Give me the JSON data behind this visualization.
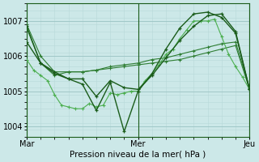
{
  "bg_color": "#cce8e8",
  "grid_color_major": "#a0c8c8",
  "grid_color_minor": "#b8d8d8",
  "line_color_dark": "#1a5c1a",
  "line_color_mid": "#2e7d32",
  "line_color_light": "#4caf50",
  "xlabel": "Pression niveau de la mer( hPa )",
  "xtick_labels": [
    "Mar",
    "Mer",
    "Jeu"
  ],
  "ytick_labels": [
    "1004",
    "1005",
    "1006",
    "1007"
  ],
  "ylim": [
    1003.7,
    1007.5
  ],
  "xlim": [
    0,
    96
  ],
  "xticks": [
    0,
    48,
    96
  ],
  "yticks": [
    1004,
    1005,
    1006,
    1007
  ],
  "s1_x": [
    0,
    6,
    12,
    18,
    24,
    30,
    36,
    42,
    48,
    54,
    60,
    66,
    72,
    78,
    84,
    90,
    96
  ],
  "s1_y": [
    1006.8,
    1005.8,
    1005.45,
    1005.55,
    1005.55,
    1005.6,
    1005.65,
    1005.7,
    1005.75,
    1005.8,
    1005.85,
    1005.9,
    1006.0,
    1006.1,
    1006.2,
    1006.3,
    1005.05
  ],
  "s2_x": [
    0,
    6,
    12,
    18,
    24,
    30,
    36,
    42,
    48,
    54,
    60,
    66,
    72,
    78,
    84,
    90,
    96
  ],
  "s2_y": [
    1006.9,
    1006.0,
    1005.55,
    1005.55,
    1005.55,
    1005.6,
    1005.7,
    1005.75,
    1005.8,
    1005.9,
    1005.95,
    1006.05,
    1006.15,
    1006.25,
    1006.35,
    1006.4,
    1005.08
  ],
  "s3_x": [
    0,
    3,
    6,
    9,
    12,
    15,
    18,
    21,
    24,
    27,
    30,
    33,
    36,
    39,
    42,
    45,
    48,
    51,
    54,
    57,
    60,
    63,
    66,
    69,
    72,
    75,
    78,
    81,
    84,
    87,
    90,
    93,
    96
  ],
  "s3_y": [
    1005.9,
    1005.6,
    1005.45,
    1005.3,
    1004.9,
    1004.6,
    1004.55,
    1004.5,
    1004.5,
    1004.65,
    1004.55,
    1004.6,
    1004.95,
    1004.9,
    1004.95,
    1005.0,
    1005.0,
    1005.3,
    1005.5,
    1005.75,
    1006.05,
    1006.2,
    1006.5,
    1006.75,
    1007.0,
    1007.0,
    1007.0,
    1007.05,
    1006.55,
    1006.05,
    1005.7,
    1005.4,
    1005.05
  ],
  "s4_x": [
    0,
    6,
    12,
    18,
    24,
    30,
    36,
    42,
    48,
    54,
    60,
    66,
    72,
    78,
    84,
    90,
    96
  ],
  "s4_y": [
    1006.85,
    1005.8,
    1005.55,
    1005.35,
    1005.35,
    1004.85,
    1005.3,
    1005.1,
    1005.05,
    1005.45,
    1005.95,
    1006.45,
    1006.85,
    1007.15,
    1007.2,
    1006.7,
    1005.05
  ],
  "s5_x": [
    0,
    6,
    12,
    18,
    24,
    30,
    36,
    42,
    48,
    54,
    60,
    66,
    72,
    78,
    84,
    90,
    96
  ],
  "s5_y": [
    1006.4,
    1005.8,
    1005.5,
    1005.35,
    1005.2,
    1004.45,
    1005.25,
    1003.85,
    1005.0,
    1005.5,
    1006.2,
    1006.8,
    1007.2,
    1007.25,
    1007.1,
    1006.65,
    1005.05
  ]
}
